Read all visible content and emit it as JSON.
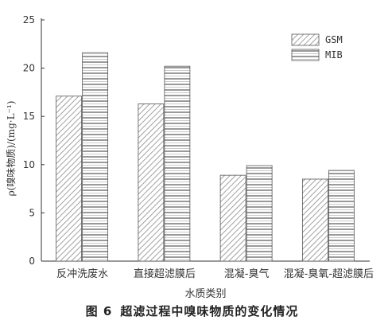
{
  "chart_data": {
    "type": "bar",
    "categories": [
      "反冲洗废水",
      "直接超滤膜后",
      "混凝-臭气",
      "混凝-臭氧-超滤膜后"
    ],
    "series": [
      {
        "name": "GSM",
        "values": [
          17.1,
          16.3,
          8.9,
          8.5
        ]
      },
      {
        "name": "MIB",
        "values": [
          21.6,
          20.2,
          9.9,
          9.4
        ]
      }
    ],
    "xlabel": "水质类别",
    "ylabel": "ρ(嗅味物质)/(mg·L⁻¹)",
    "ylim": [
      0,
      25
    ],
    "yticks": [
      "0",
      "5",
      "10",
      "15",
      "20",
      "25"
    ],
    "grid": false,
    "legend_position": "top-right"
  },
  "caption": {
    "figure_no": "图 6",
    "title": "超滤过程中嗅味物质的变化情况"
  }
}
